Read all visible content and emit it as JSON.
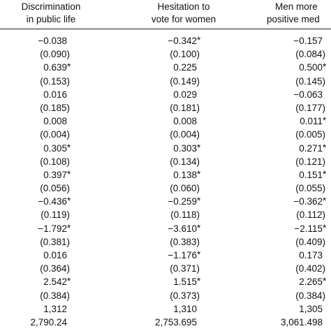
{
  "columns": [
    {
      "line1": "Discrimination",
      "line2": "in public life"
    },
    {
      "line1": "Hesitation to",
      "line2": "vote for women"
    },
    {
      "line1": "Men more",
      "line2": "positive med"
    }
  ],
  "rows": [
    [
      "−0.038",
      "−0.342*",
      "−0.157"
    ],
    [
      "(0.090)",
      "(0.100)",
      "(0.084)"
    ],
    [
      "0.639*",
      "0.225",
      "0.500*"
    ],
    [
      "(0.153)",
      "(0.149)",
      "(0.145)"
    ],
    [
      "0.016",
      "0.029",
      "−0.063"
    ],
    [
      "(0.185)",
      "(0.181)",
      "(0.177)"
    ],
    [
      "0.008",
      "0.008",
      "0.011*"
    ],
    [
      "(0.004)",
      "(0.004)",
      "(0.005)"
    ],
    [
      "0.305*",
      "0.303*",
      "0.271*"
    ],
    [
      "(0.108)",
      "(0.134)",
      "(0.121)"
    ],
    [
      "0.397*",
      "0.138*",
      "0.151*"
    ],
    [
      "(0.056)",
      "(0.060)",
      "(0.055)"
    ],
    [
      "−0.436*",
      "−0.259*",
      "−0.362*"
    ],
    [
      "(0.119)",
      "(0.118)",
      "(0.112)"
    ],
    [
      "−1.792*",
      "−3.610*",
      "−2.115*"
    ],
    [
      "(0.381)",
      "(0.383)",
      "(0.409)"
    ],
    [
      "0.016",
      "−1.176*",
      "0.173"
    ],
    [
      "(0.364)",
      "(0.371)",
      "(0.402)"
    ],
    [
      "2.542*",
      "1.515*",
      "2.265*"
    ],
    [
      "(0.384)",
      "(0.373)",
      "(0.384)"
    ],
    [
      "1,312",
      "1,310",
      "1,305"
    ],
    [
      "2,790.24",
      "2,753.695",
      "3,061.498"
    ]
  ]
}
